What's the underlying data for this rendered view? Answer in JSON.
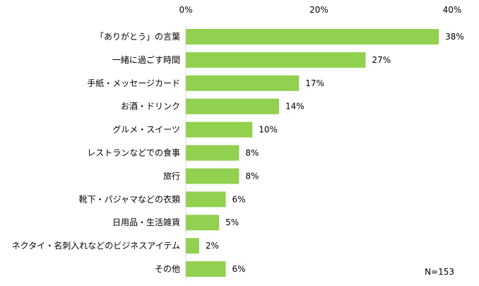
{
  "chart_data": {
    "type": "bar",
    "orientation": "horizontal",
    "categories": [
      "「ありがとう」の言葉",
      "一緒に過ごす時間",
      "手紙・メッセージカード",
      "お酒・ドリンク",
      "グルメ・スイーツ",
      "レストランなどでの食事",
      "旅行",
      "靴下・パジャマなどの衣類",
      "日用品・生活雑貨",
      "ネクタイ・名刺入れなどのビジネスアイテム",
      "その他"
    ],
    "values": [
      38,
      27,
      17,
      14,
      10,
      8,
      8,
      6,
      5,
      2,
      6
    ],
    "value_labels": [
      "38%",
      "27%",
      "17%",
      "14%",
      "10%",
      "8%",
      "8%",
      "6%",
      "5%",
      "2%",
      "6%"
    ],
    "xlim": [
      0,
      40
    ],
    "xticks": [
      0,
      20,
      40
    ],
    "xtick_labels": [
      "0%",
      "20%",
      "40%"
    ],
    "axis_position": "top",
    "grid": false,
    "legend": "none",
    "bar_color": "#92d050",
    "note": "N=153"
  }
}
